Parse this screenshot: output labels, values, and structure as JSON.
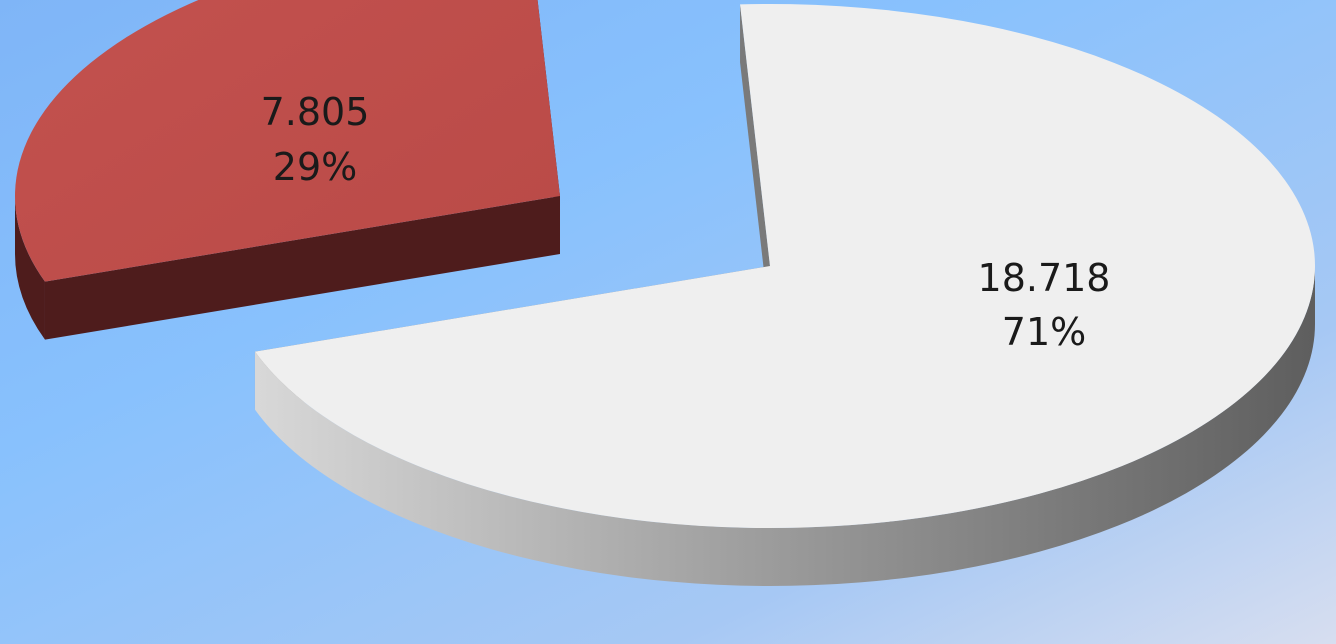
{
  "chart_data": {
    "type": "pie",
    "style": "3d-exploded",
    "values": [
      18.718,
      7.805
    ],
    "value_labels": [
      "18.718",
      "7.805"
    ],
    "percent_labels": [
      "71%",
      "29%"
    ],
    "slices": [
      {
        "value": 18.718,
        "value_label": "18.718",
        "percent_label": "71%",
        "color": "#efefef",
        "side_color": "#7a7a7a"
      },
      {
        "value": 7.805,
        "value_label": "7.805",
        "percent_label": "29%",
        "color": "#c0504d",
        "side_color": "#4e1c1c"
      }
    ],
    "legend": "none"
  },
  "colors": {
    "background_gradient": [
      "#7fb7fb",
      "#d3dcf2"
    ]
  }
}
